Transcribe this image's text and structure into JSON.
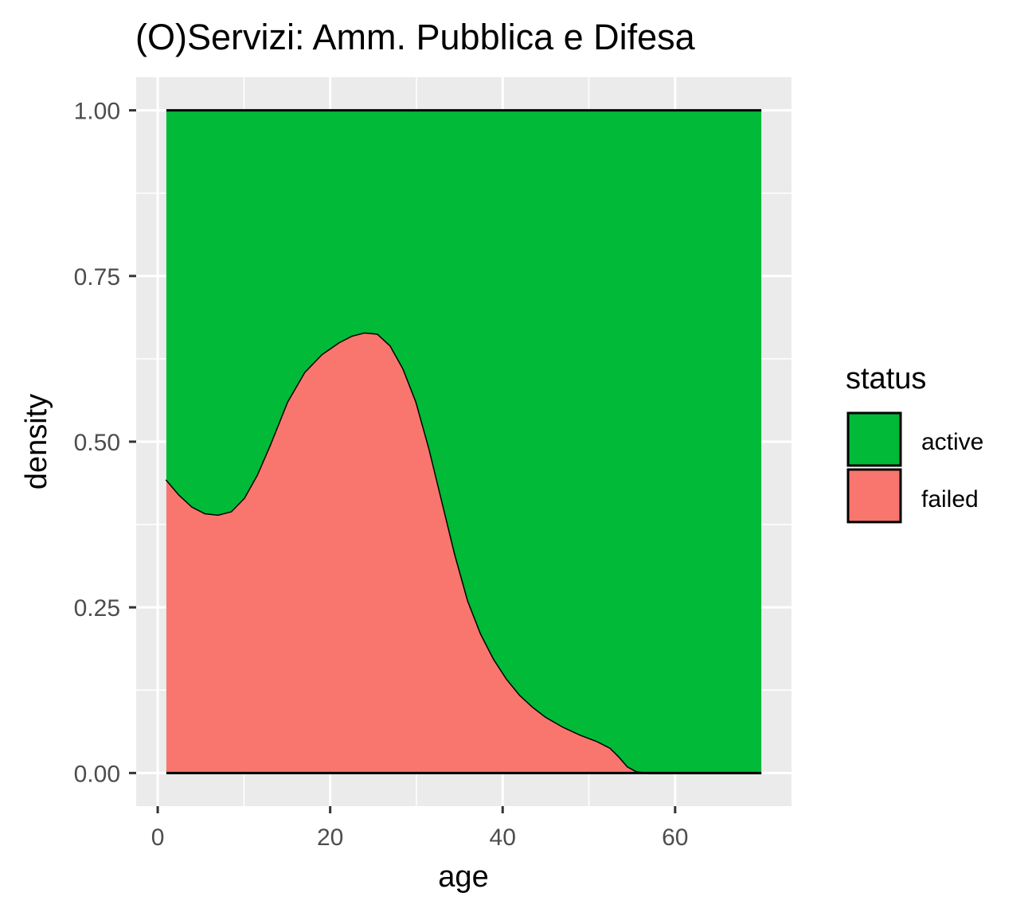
{
  "chart_data": {
    "type": "area",
    "title": "(O)Servizi: Amm. Pubblica e Difesa",
    "xlabel": "age",
    "ylabel": "density",
    "xlim": [
      -2.5,
      73.5
    ],
    "ylim": [
      -0.05,
      1.05
    ],
    "x_ticks": [
      0,
      20,
      40,
      60
    ],
    "x_tick_labels": [
      "0",
      "20",
      "40",
      "60"
    ],
    "y_ticks": [
      0,
      0.25,
      0.5,
      0.75,
      1.0
    ],
    "y_tick_labels": [
      "0.00",
      "0.25",
      "0.50",
      "0.75",
      "1.00"
    ],
    "grid": true,
    "legend": {
      "title": "status",
      "position": "right",
      "items": [
        {
          "label": "active",
          "color": "#00BA38"
        },
        {
          "label": "failed",
          "color": "#F8766D"
        }
      ]
    },
    "stacking": "fill",
    "x": [
      1,
      2.5,
      4,
      5.5,
      7,
      8.5,
      10,
      11.5,
      13,
      15,
      17,
      19,
      21,
      22.5,
      24,
      25.5,
      27,
      28.5,
      30,
      31.5,
      33,
      34.5,
      36,
      37.5,
      39,
      40.5,
      42,
      43.5,
      45,
      47,
      49,
      51,
      52.5,
      53.5,
      54.5,
      55.5,
      57,
      60,
      65,
      70
    ],
    "series": [
      {
        "name": "failed",
        "values": [
          0.443,
          0.42,
          0.402,
          0.392,
          0.39,
          0.395,
          0.415,
          0.45,
          0.495,
          0.56,
          0.605,
          0.632,
          0.65,
          0.66,
          0.665,
          0.663,
          0.645,
          0.61,
          0.56,
          0.49,
          0.41,
          0.33,
          0.26,
          0.21,
          0.172,
          0.142,
          0.118,
          0.1,
          0.085,
          0.07,
          0.058,
          0.048,
          0.038,
          0.025,
          0.01,
          0.003,
          0.0,
          0.0,
          0.0,
          0.0
        ]
      },
      {
        "name": "active",
        "values": [
          0.557,
          0.58,
          0.598,
          0.608,
          0.61,
          0.605,
          0.585,
          0.55,
          0.505,
          0.44,
          0.395,
          0.368,
          0.35,
          0.34,
          0.335,
          0.337,
          0.355,
          0.39,
          0.44,
          0.51,
          0.59,
          0.67,
          0.74,
          0.79,
          0.828,
          0.858,
          0.882,
          0.9,
          0.915,
          0.93,
          0.942,
          0.952,
          0.962,
          0.975,
          0.99,
          0.997,
          1.0,
          1.0,
          1.0,
          1.0
        ]
      }
    ]
  }
}
